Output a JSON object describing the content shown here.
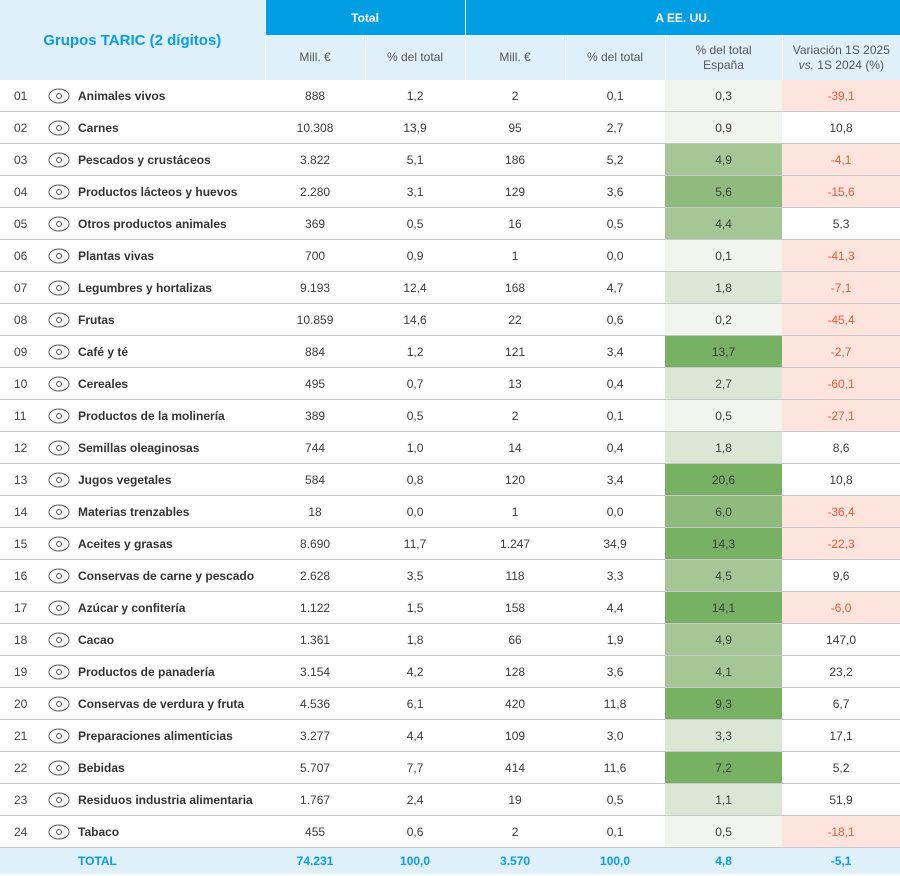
{
  "header": {
    "title": "Grupos TARIC (2 dígitos)",
    "group_total": "Total",
    "group_us": "A EE. UU.",
    "col_mill": "Mill. €",
    "col_pct": "% del total",
    "col_pct_esp_1": "% del total",
    "col_pct_esp_2": "España",
    "col_var_1": "Variación 1S 2025",
    "col_var_2_italic": "vs.",
    "col_var_2_rest": " 1S 2024 (%)"
  },
  "colors": {
    "header_blue": "#009fe3",
    "header_light": "#dff0fb",
    "negative_bg": "#fde4dc",
    "negative_text": "#ef5a3a",
    "green_scale": [
      "#f2f4ef",
      "#dce6d4",
      "#a5c795",
      "#8fbc7e",
      "#78b064"
    ]
  },
  "rows": [
    {
      "code": "01",
      "icon": "pig-icon",
      "name": "Animales vivos",
      "total_mill": "888",
      "total_pct": "1,2",
      "us_mill": "2",
      "us_pct": "0,1",
      "us_pct_esp": "0,3",
      "var": "-39,1"
    },
    {
      "code": "02",
      "icon": "meat-icon",
      "name": "Carnes",
      "total_mill": "10.308",
      "total_pct": "13,9",
      "us_mill": "95",
      "us_pct": "2,7",
      "us_pct_esp": "0,9",
      "var": "10,8"
    },
    {
      "code": "03",
      "icon": "fish-icon",
      "name": "Pescados y crustáceos",
      "total_mill": "3.822",
      "total_pct": "5,1",
      "us_mill": "186",
      "us_pct": "5,2",
      "us_pct_esp": "4,9",
      "var": "-4,1"
    },
    {
      "code": "04",
      "icon": "milk-bottle-icon",
      "name": "Productos lácteos y huevos",
      "total_mill": "2.280",
      "total_pct": "3,1",
      "us_mill": "129",
      "us_pct": "3,6",
      "us_pct_esp": "5,6",
      "var": "-15,6"
    },
    {
      "code": "05",
      "icon": "animal-product-icon",
      "name": "Otros productos animales",
      "total_mill": "369",
      "total_pct": "0,5",
      "us_mill": "16",
      "us_pct": "0,5",
      "us_pct_esp": "4,4",
      "var": "5,3"
    },
    {
      "code": "06",
      "icon": "plant-icon",
      "name": "Plantas vivas",
      "total_mill": "700",
      "total_pct": "0,9",
      "us_mill": "1",
      "us_pct": "0,0",
      "us_pct_esp": "0,1",
      "var": "-41,3"
    },
    {
      "code": "07",
      "icon": "vegetables-icon",
      "name": "Legumbres y hortalizas",
      "total_mill": "9.193",
      "total_pct": "12,4",
      "us_mill": "168",
      "us_pct": "4,7",
      "us_pct_esp": "1,8",
      "var": "-7,1"
    },
    {
      "code": "08",
      "icon": "apple-icon",
      "name": "Frutas",
      "total_mill": "10.859",
      "total_pct": "14,6",
      "us_mill": "22",
      "us_pct": "0,6",
      "us_pct_esp": "0,2",
      "var": "-45,4"
    },
    {
      "code": "09",
      "icon": "coffee-cup-icon",
      "name": "Café y té",
      "total_mill": "884",
      "total_pct": "1,2",
      "us_mill": "121",
      "us_pct": "3,4",
      "us_pct_esp": "13,7",
      "var": "-2,7"
    },
    {
      "code": "10",
      "icon": "wheat-icon",
      "name": "Cereales",
      "total_mill": "495",
      "total_pct": "0,7",
      "us_mill": "13",
      "us_pct": "0,4",
      "us_pct_esp": "2,7",
      "var": "-60,1"
    },
    {
      "code": "11",
      "icon": "windmill-icon",
      "name": "Productos de la molinería",
      "total_mill": "389",
      "total_pct": "0,5",
      "us_mill": "2",
      "us_pct": "0,1",
      "us_pct_esp": "0,5",
      "var": "-27,1"
    },
    {
      "code": "12",
      "icon": "sunflower-icon",
      "name": "Semillas oleaginosas",
      "total_mill": "744",
      "total_pct": "1,0",
      "us_mill": "14",
      "us_pct": "0,4",
      "us_pct_esp": "1,8",
      "var": "8,6"
    },
    {
      "code": "13",
      "icon": "juice-glass-icon",
      "name": "Jugos vegetales",
      "total_mill": "584",
      "total_pct": "0,8",
      "us_mill": "120",
      "us_pct": "3,4",
      "us_pct_esp": "20,6",
      "var": "10,8"
    },
    {
      "code": "14",
      "icon": "bamboo-icon",
      "name": "Materias trenzables",
      "total_mill": "18",
      "total_pct": "0,0",
      "us_mill": "1",
      "us_pct": "0,0",
      "us_pct_esp": "6,0",
      "var": "-36,4"
    },
    {
      "code": "15",
      "icon": "oil-bottle-icon",
      "name": "Aceites y grasas",
      "total_mill": "8.690",
      "total_pct": "11,7",
      "us_mill": "1.247",
      "us_pct": "34,9",
      "us_pct_esp": "14,3",
      "var": "-22,3"
    },
    {
      "code": "16",
      "icon": "can-icon",
      "name": "Conservas de carne y pescado",
      "total_mill": "2.628",
      "total_pct": "3,5",
      "us_mill": "118",
      "us_pct": "3,3",
      "us_pct_esp": "4,5",
      "var": "9,6"
    },
    {
      "code": "17",
      "icon": "candy-icon",
      "name": "Azúcar y confitería",
      "total_mill": "1.122",
      "total_pct": "1,5",
      "us_mill": "158",
      "us_pct": "4,4",
      "us_pct_esp": "14,1",
      "var": "-6,0"
    },
    {
      "code": "18",
      "icon": "cocoa-icon",
      "name": "Cacao",
      "total_mill": "1.361",
      "total_pct": "1,8",
      "us_mill": "66",
      "us_pct": "1,9",
      "us_pct_esp": "4,9",
      "var": "147,0"
    },
    {
      "code": "19",
      "icon": "croissant-icon",
      "name": "Productos de panadería",
      "total_mill": "3.154",
      "total_pct": "4,2",
      "us_mill": "128",
      "us_pct": "3,6",
      "us_pct_esp": "4,1",
      "var": "23,2"
    },
    {
      "code": "20",
      "icon": "jar-icon",
      "name": "Conservas de verdura y fruta",
      "total_mill": "4.536",
      "total_pct": "6,1",
      "us_mill": "420",
      "us_pct": "11,8",
      "us_pct_esp": "9,3",
      "var": "6,7"
    },
    {
      "code": "21",
      "icon": "package-icon",
      "name": "Preparaciones alimenticias",
      "total_mill": "3.277",
      "total_pct": "4,4",
      "us_mill": "109",
      "us_pct": "3,0",
      "us_pct_esp": "3,3",
      "var": "17,1"
    },
    {
      "code": "22",
      "icon": "bottle-glass-icon",
      "name": "Bebidas",
      "total_mill": "5.707",
      "total_pct": "7,7",
      "us_mill": "414",
      "us_pct": "11,6",
      "us_pct_esp": "7,2",
      "var": "5,2"
    },
    {
      "code": "23",
      "icon": "sack-icon",
      "name": "Residuos industria alimentaria",
      "total_mill": "1.767",
      "total_pct": "2,4",
      "us_mill": "19",
      "us_pct": "0,5",
      "us_pct_esp": "1,1",
      "var": "51,9"
    },
    {
      "code": "24",
      "icon": "cigarette-icon",
      "name": "Tabaco",
      "total_mill": "455",
      "total_pct": "0,6",
      "us_mill": "2",
      "us_pct": "0,1",
      "us_pct_esp": "0,5",
      "var": "-18,1"
    }
  ],
  "total": {
    "label": "TOTAL",
    "total_mill": "74.231",
    "total_pct": "100,0",
    "us_mill": "3.570",
    "us_pct": "100,0",
    "us_pct_esp": "4,8",
    "var": "-5,1"
  }
}
